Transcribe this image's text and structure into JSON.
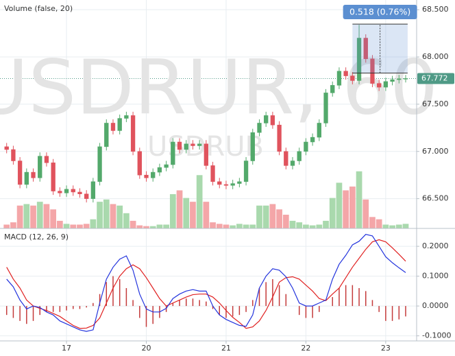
{
  "chart_data": [
    {
      "type": "candlestick",
      "title": "Volume (false, 20)",
      "watermark": "USDRUR, 60",
      "watermark_symbol": "USDRUB",
      "x": [
        6,
        8,
        10,
        12,
        14,
        16,
        18,
        20,
        22,
        24,
        26,
        28,
        30,
        32,
        34,
        36,
        38,
        40,
        42,
        44,
        46,
        48,
        50,
        52,
        54,
        56,
        58,
        60,
        62,
        64,
        66,
        68,
        70,
        72,
        74,
        76,
        78,
        80,
        82,
        84,
        86,
        88,
        90,
        92,
        94,
        96,
        98,
        100,
        102,
        104,
        106,
        108,
        110,
        112,
        114,
        116,
        118,
        120,
        122,
        124,
        126
      ],
      "open": [
        67.05,
        67.02,
        66.9,
        66.65,
        66.78,
        66.72,
        66.95,
        66.88,
        66.58,
        66.56,
        66.6,
        66.57,
        66.55,
        66.5,
        66.68,
        67.05,
        67.3,
        67.22,
        67.35,
        67.38,
        67.0,
        66.75,
        66.72,
        66.78,
        66.83,
        66.86,
        67.1,
        67.02,
        67.08,
        67.06,
        67.08,
        66.85,
        66.68,
        66.65,
        66.64,
        66.66,
        66.68,
        66.9,
        67.2,
        67.3,
        67.38,
        67.28,
        67.0,
        66.85,
        66.9,
        67.0,
        67.1,
        67.15,
        67.3,
        67.62,
        67.7,
        67.85,
        67.8,
        67.75,
        68.2,
        67.98,
        67.72,
        67.68,
        67.74,
        67.76,
        67.77
      ],
      "high": [
        67.09,
        67.06,
        66.94,
        66.82,
        66.82,
        66.99,
        66.99,
        66.92,
        66.62,
        66.64,
        66.64,
        66.61,
        66.59,
        66.72,
        67.09,
        67.34,
        67.34,
        67.39,
        67.42,
        67.42,
        67.04,
        66.79,
        66.82,
        66.87,
        66.9,
        67.14,
        67.14,
        67.12,
        67.12,
        67.12,
        67.12,
        66.89,
        66.72,
        66.69,
        66.7,
        66.72,
        66.94,
        67.24,
        67.34,
        67.42,
        67.42,
        67.32,
        67.04,
        66.94,
        67.04,
        67.14,
        67.19,
        67.34,
        67.66,
        67.74,
        67.89,
        67.89,
        67.84,
        68.34,
        68.24,
        68.02,
        67.76,
        67.78,
        67.8,
        67.81,
        67.81
      ],
      "low": [
        66.98,
        66.86,
        66.61,
        66.61,
        66.68,
        66.68,
        66.84,
        66.54,
        66.52,
        66.52,
        66.53,
        66.51,
        66.46,
        66.46,
        66.64,
        67.01,
        67.18,
        67.18,
        67.31,
        66.96,
        66.71,
        66.68,
        66.68,
        66.74,
        66.79,
        66.82,
        66.98,
        66.98,
        67.02,
        67.02,
        66.81,
        66.64,
        66.61,
        66.6,
        66.6,
        66.62,
        66.64,
        66.86,
        67.16,
        67.26,
        67.24,
        66.96,
        66.81,
        66.81,
        66.86,
        66.96,
        67.06,
        67.11,
        67.26,
        67.58,
        67.66,
        67.76,
        67.71,
        67.71,
        67.94,
        67.68,
        67.64,
        67.64,
        67.7,
        67.72,
        67.73
      ],
      "close": [
        67.02,
        66.9,
        66.65,
        66.78,
        66.72,
        66.95,
        66.88,
        66.58,
        66.56,
        66.6,
        66.57,
        66.55,
        66.5,
        66.68,
        67.05,
        67.3,
        67.22,
        67.35,
        67.38,
        67.0,
        66.75,
        66.72,
        66.78,
        66.83,
        66.86,
        67.1,
        67.02,
        67.08,
        67.06,
        67.08,
        66.85,
        66.68,
        66.65,
        66.64,
        66.66,
        66.68,
        66.9,
        67.2,
        67.3,
        67.38,
        67.28,
        67.0,
        66.85,
        66.9,
        67.0,
        67.1,
        67.15,
        67.3,
        67.62,
        67.7,
        67.85,
        67.8,
        67.75,
        68.2,
        67.98,
        67.72,
        67.68,
        67.74,
        67.76,
        67.77,
        67.772
      ],
      "volume": [
        5,
        8,
        30,
        32,
        30,
        35,
        32,
        25,
        10,
        6,
        5,
        5,
        6,
        12,
        35,
        38,
        32,
        30,
        20,
        10,
        4,
        3,
        3,
        5,
        5,
        45,
        50,
        40,
        35,
        70,
        35,
        8,
        6,
        5,
        4,
        6,
        5,
        5,
        30,
        30,
        32,
        25,
        18,
        10,
        8,
        5,
        4,
        5,
        10,
        40,
        60,
        50,
        55,
        75,
        38,
        15,
        12,
        5,
        4,
        5,
        6
      ],
      "up_color": "#53a96b",
      "down_color": "#e0535d",
      "volume_up_color": "#a9d9ad",
      "volume_down_color": "#f4a6a8",
      "xlim": [
        4,
        129.3
      ],
      "xticks": [
        {
          "value": 24,
          "label": "17"
        },
        {
          "value": 48,
          "label": "20"
        },
        {
          "value": 72,
          "label": "21"
        },
        {
          "value": 96,
          "label": "22"
        },
        {
          "value": 120,
          "label": "23"
        }
      ],
      "ylim": [
        66.185,
        68.603
      ],
      "yticks": [
        {
          "value": 66.5,
          "label": "66.500"
        },
        {
          "value": 67,
          "label": "67.000"
        },
        {
          "value": 67.5,
          "label": "67.500"
        },
        {
          "value": 68,
          "label": "68.000"
        },
        {
          "value": 68.5,
          "label": "68.500"
        }
      ],
      "y2lim": [
        0,
        300
      ],
      "grid": true,
      "last_price": 67.772,
      "last_price_color": "#4f9a86",
      "measurement": {
        "label": "0.518 (0.76%)",
        "x": [
          110,
          126.6
        ],
        "y": [
          67.83,
          68.348
        ],
        "color": "#5b8fd1"
      }
    },
    {
      "type": "macd",
      "title": "MACD (12, 26, 9)",
      "macd": {
        "color": "#2233dd",
        "values": [
          0.09,
          0.064,
          0.02,
          -0.01,
          0.0,
          -0.005,
          -0.02,
          -0.03,
          -0.05,
          -0.06,
          -0.07,
          -0.08,
          -0.085,
          -0.08,
          0.01,
          0.09,
          0.13,
          0.157,
          0.168,
          0.12,
          0.04,
          -0.01,
          -0.02,
          -0.02,
          -0.008,
          0.025,
          0.04,
          0.05,
          0.055,
          0.05,
          0.05,
          0.0,
          -0.03,
          -0.045,
          -0.055,
          -0.065,
          -0.068,
          -0.03,
          0.06,
          0.1,
          0.125,
          0.12,
          0.098,
          0.06,
          0.01,
          0.0,
          0.0,
          0.01,
          0.02,
          0.09,
          0.14,
          0.17,
          0.205,
          0.217,
          0.24,
          0.235,
          0.2,
          0.165,
          0.145,
          0.128,
          0.112
        ]
      },
      "signal": {
        "color": "#e02020",
        "values": [
          0.13,
          0.09,
          0.06,
          0.02,
          0.0,
          -0.008,
          -0.015,
          -0.025,
          -0.035,
          -0.05,
          -0.065,
          -0.075,
          -0.074,
          -0.065,
          -0.04,
          0.01,
          0.06,
          0.1,
          0.125,
          0.138,
          0.125,
          0.095,
          0.06,
          0.025,
          0.0,
          0.01,
          0.02,
          0.03,
          0.038,
          0.04,
          0.04,
          0.03,
          0.01,
          -0.015,
          -0.038,
          -0.055,
          -0.075,
          -0.07,
          -0.05,
          -0.015,
          0.03,
          0.08,
          0.095,
          0.098,
          0.09,
          0.07,
          0.05,
          0.025,
          0.018,
          0.04,
          0.06,
          0.095,
          0.13,
          0.16,
          0.19,
          0.215,
          0.222,
          0.215,
          0.195,
          0.173,
          0.15
        ]
      },
      "histogram": {
        "color": "#c43a3a",
        "values": [
          -0.03,
          -0.04,
          -0.05,
          -0.06,
          -0.05,
          -0.03,
          -0.02,
          -0.02,
          -0.02,
          -0.015,
          -0.01,
          -0.01,
          -0.005,
          0.01,
          0.04,
          0.08,
          0.1,
          0.09,
          0.06,
          0.02,
          -0.04,
          -0.07,
          -0.06,
          -0.04,
          -0.02,
          0.01,
          0.02,
          0.025,
          0.025,
          0.02,
          0.015,
          -0.01,
          -0.03,
          -0.04,
          -0.035,
          -0.03,
          -0.02,
          0.02,
          0.06,
          0.08,
          0.09,
          0.07,
          0.04,
          0.0,
          -0.03,
          -0.04,
          -0.04,
          -0.02,
          0.0,
          0.03,
          0.06,
          0.07,
          0.07,
          0.06,
          0.05,
          0.02,
          -0.02,
          -0.05,
          -0.05,
          -0.045,
          -0.035
        ]
      },
      "ylim": [
        -0.117,
        0.26
      ],
      "yticks": [
        {
          "value": -0.1,
          "label": "-0.1000"
        },
        {
          "value": 0,
          "label": "0.0000"
        },
        {
          "value": 0.1,
          "label": "0.1000"
        },
        {
          "value": 0.2,
          "label": "0.2000"
        }
      ],
      "grid": true
    }
  ]
}
